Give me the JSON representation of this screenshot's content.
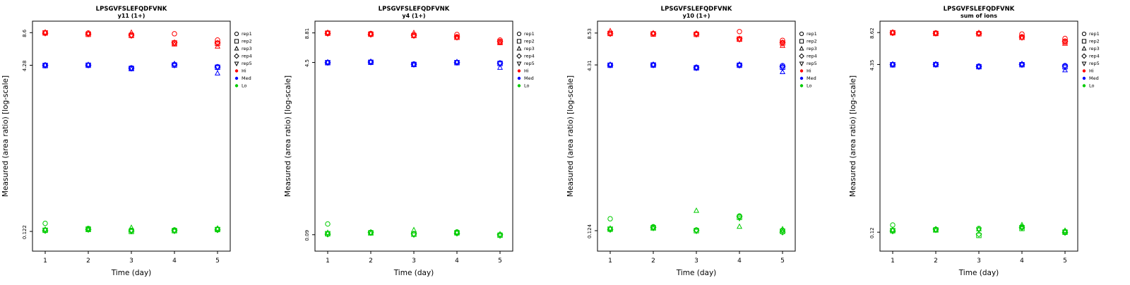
{
  "page": {
    "background": "#ffffff"
  },
  "legend": {
    "reps": [
      {
        "label": "rep1",
        "symbol": "circle"
      },
      {
        "label": "rep2",
        "symbol": "square"
      },
      {
        "label": "rep3",
        "symbol": "triangle-up"
      },
      {
        "label": "rep4",
        "symbol": "diamond"
      },
      {
        "label": "rep5",
        "symbol": "triangle-down"
      }
    ],
    "levels": [
      {
        "label": "Hi",
        "color": "#FF0000"
      },
      {
        "label": "Med",
        "color": "#0000FF"
      },
      {
        "label": "Lo",
        "color": "#00CC00"
      }
    ]
  },
  "chart_data": [
    {
      "type": "scatter",
      "title": "LPSGVFSLEFQDFVNK",
      "subtitle": "y11 (1+)",
      "xlabel": "Time (day)",
      "ylabel": "Measured (area ratio) [log-scale]",
      "x": [
        1,
        2,
        3,
        4,
        5
      ],
      "yscale": "log",
      "ylim": [
        0.08,
        11
      ],
      "yticks": [
        8.6,
        4.28,
        0.122
      ],
      "ytick_labels": [
        "8.6",
        "4.28",
        "0.122"
      ],
      "series": [
        {
          "name": "Hi",
          "color": "#FF0000",
          "values_by_rep": [
            [
              8.6,
              8.55,
              8.2,
              8.4,
              7.35
            ],
            [
              8.55,
              8.3,
              8.1,
              6.9,
              6.85
            ],
            [
              8.65,
              8.45,
              8.6,
              6.7,
              6.4
            ],
            [
              8.5,
              8.35,
              8.15,
              6.95,
              6.9
            ],
            [
              8.6,
              8.4,
              8.05,
              6.85,
              6.8
            ]
          ]
        },
        {
          "name": "Med",
          "color": "#0000FF",
          "values_by_rep": [
            [
              4.3,
              4.3,
              4.05,
              4.35,
              4.15
            ],
            [
              4.25,
              4.28,
              4.0,
              4.3,
              4.1
            ],
            [
              4.28,
              4.32,
              3.95,
              4.4,
              3.6
            ],
            [
              4.27,
              4.29,
              4.02,
              4.32,
              4.12
            ],
            [
              4.3,
              4.31,
              4.0,
              4.28,
              4.08
            ]
          ]
        },
        {
          "name": "Lo",
          "color": "#00CC00",
          "values_by_rep": [
            [
              0.145,
              0.13,
              0.125,
              0.126,
              0.128
            ],
            [
              0.125,
              0.128,
              0.122,
              0.124,
              0.127
            ],
            [
              0.127,
              0.126,
              0.132,
              0.125,
              0.13
            ],
            [
              0.124,
              0.127,
              0.123,
              0.125,
              0.126
            ],
            [
              0.126,
              0.129,
              0.124,
              0.123,
              0.128
            ]
          ]
        }
      ]
    },
    {
      "type": "scatter",
      "title": "LPSGVFSLEFQDFVNK",
      "subtitle": "y4 (1+)",
      "xlabel": "Time (day)",
      "ylabel": "Measured (area ratio) [log-scale]",
      "x": [
        1,
        2,
        3,
        4,
        5
      ],
      "yscale": "log",
      "ylim": [
        0.062,
        11.5
      ],
      "yticks": [
        8.81,
        4.5,
        0.09
      ],
      "ytick_labels": [
        "8.81",
        "4.5",
        "0.09"
      ],
      "series": [
        {
          "name": "Hi",
          "color": "#FF0000",
          "values_by_rep": [
            [
              8.81,
              8.7,
              8.4,
              8.5,
              7.5
            ],
            [
              8.75,
              8.55,
              8.3,
              8.0,
              7.2
            ],
            [
              8.85,
              8.6,
              8.8,
              7.9,
              7.0
            ],
            [
              8.7,
              8.5,
              8.35,
              8.05,
              7.25
            ],
            [
              8.78,
              8.58,
              8.25,
              7.95,
              7.15
            ]
          ]
        },
        {
          "name": "Med",
          "color": "#0000FF",
          "values_by_rep": [
            [
              4.5,
              4.55,
              4.35,
              4.5,
              4.45
            ],
            [
              4.48,
              4.52,
              4.3,
              4.48,
              4.4
            ],
            [
              4.52,
              4.58,
              4.28,
              4.55,
              4.0
            ],
            [
              4.49,
              4.54,
              4.32,
              4.5,
              4.42
            ],
            [
              4.51,
              4.53,
              4.3,
              4.52,
              4.38
            ]
          ]
        },
        {
          "name": "Lo",
          "color": "#00CC00",
          "values_by_rep": [
            [
              0.115,
              0.095,
              0.092,
              0.096,
              0.09
            ],
            [
              0.092,
              0.094,
              0.091,
              0.094,
              0.089
            ],
            [
              0.094,
              0.093,
              0.1,
              0.095,
              0.091
            ],
            [
              0.091,
              0.095,
              0.092,
              0.093,
              0.09
            ],
            [
              0.093,
              0.094,
              0.09,
              0.094,
              0.088
            ]
          ]
        }
      ]
    },
    {
      "type": "scatter",
      "title": "LPSGVFSLEFQDFVNK",
      "subtitle": "y10 (1+)",
      "xlabel": "Time (day)",
      "ylabel": "Measured (area ratio) [log-scale]",
      "x": [
        1,
        2,
        3,
        4,
        5
      ],
      "yscale": "log",
      "ylim": [
        0.08,
        11
      ],
      "yticks": [
        8.53,
        4.31,
        0.124
      ],
      "ytick_labels": [
        "8.53",
        "4.31",
        "0.124"
      ],
      "series": [
        {
          "name": "Hi",
          "color": "#FF0000",
          "values_by_rep": [
            [
              8.5,
              8.45,
              8.4,
              8.8,
              7.3
            ],
            [
              8.45,
              8.35,
              8.3,
              7.5,
              6.9
            ],
            [
              8.9,
              8.5,
              8.45,
              7.4,
              6.5
            ],
            [
              8.4,
              8.4,
              8.35,
              7.55,
              6.95
            ],
            [
              8.5,
              8.42,
              8.28,
              7.45,
              6.85
            ]
          ]
        },
        {
          "name": "Med",
          "color": "#0000FF",
          "values_by_rep": [
            [
              4.31,
              4.32,
              4.1,
              4.3,
              4.25
            ],
            [
              4.28,
              4.3,
              4.05,
              4.28,
              4.1
            ],
            [
              4.33,
              4.34,
              4.08,
              4.35,
              3.7
            ],
            [
              4.3,
              4.31,
              4.06,
              4.3,
              4.15
            ],
            [
              4.32,
              4.3,
              4.04,
              4.27,
              4.05
            ]
          ]
        },
        {
          "name": "Lo",
          "color": "#00CC00",
          "values_by_rep": [
            [
              0.16,
              0.135,
              0.126,
              0.17,
              0.125
            ],
            [
              0.128,
              0.132,
              0.124,
              0.165,
              0.122
            ],
            [
              0.13,
              0.13,
              0.19,
              0.135,
              0.128
            ],
            [
              0.127,
              0.133,
              0.125,
              0.168,
              0.12
            ],
            [
              0.129,
              0.131,
              0.123,
              0.162,
              0.124
            ]
          ]
        }
      ]
    },
    {
      "type": "scatter",
      "title": "LPSGVFSLEFQDFVNK",
      "subtitle": "sum of ions",
      "xlabel": "Time (day)",
      "ylabel": "Measured (area ratio) [log-scale]",
      "x": [
        1,
        2,
        3,
        4,
        5
      ],
      "yscale": "log",
      "ylim": [
        0.08,
        11
      ],
      "yticks": [
        8.62,
        4.35,
        0.12
      ],
      "ytick_labels": [
        "8.62",
        "4.35",
        "0.12"
      ],
      "series": [
        {
          "name": "Hi",
          "color": "#FF0000",
          "values_by_rep": [
            [
              8.62,
              8.55,
              8.5,
              8.35,
              7.6
            ],
            [
              8.58,
              8.45,
              8.4,
              7.8,
              7.1
            ],
            [
              8.65,
              8.5,
              8.55,
              7.7,
              6.8
            ],
            [
              8.55,
              8.48,
              8.45,
              7.85,
              7.15
            ],
            [
              8.6,
              8.5,
              8.38,
              7.75,
              7.05
            ]
          ]
        },
        {
          "name": "Med",
          "color": "#0000FF",
          "values_by_rep": [
            [
              4.35,
              4.36,
              4.2,
              4.36,
              4.25
            ],
            [
              4.32,
              4.34,
              4.15,
              4.33,
              4.15
            ],
            [
              4.37,
              4.38,
              4.18,
              4.4,
              3.85
            ],
            [
              4.34,
              4.35,
              4.16,
              4.35,
              4.2
            ],
            [
              4.36,
              4.34,
              4.14,
              4.32,
              4.1
            ]
          ]
        },
        {
          "name": "Lo",
          "color": "#00CC00",
          "values_by_rep": [
            [
              0.14,
              0.127,
              0.13,
              0.135,
              0.122
            ],
            [
              0.124,
              0.126,
              0.112,
              0.13,
              0.12
            ],
            [
              0.126,
              0.125,
              0.128,
              0.14,
              0.124
            ],
            [
              0.123,
              0.128,
              0.115,
              0.132,
              0.119
            ],
            [
              0.125,
              0.126,
              0.127,
              0.134,
              0.121
            ]
          ]
        }
      ]
    }
  ]
}
